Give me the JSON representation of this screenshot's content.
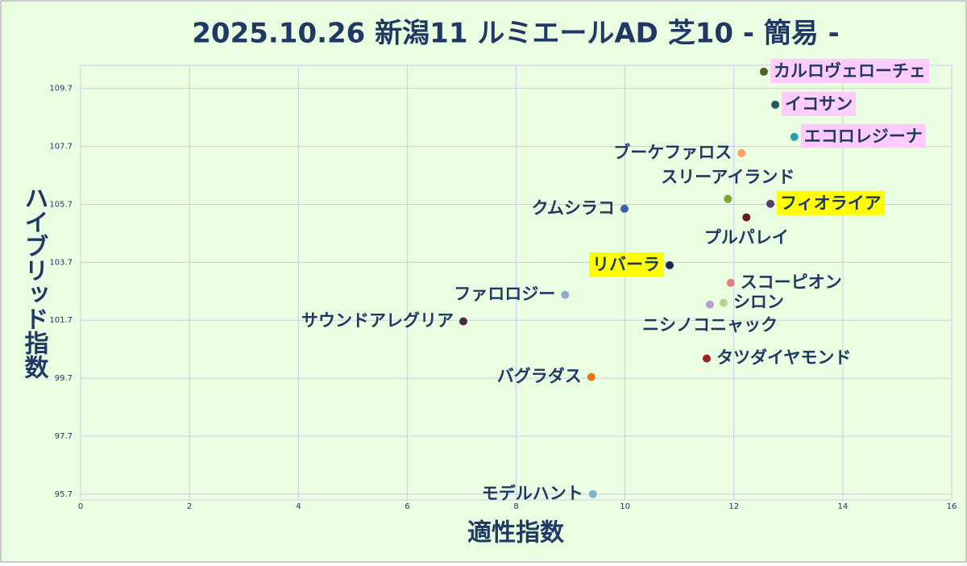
{
  "chart_data": {
    "type": "scatter",
    "title": "2025.10.26 新潟11 ルミエールAD 芝10  - 簡易 -",
    "x_label": "適性指数",
    "y_label": "ハイブリッド指数",
    "xlim": [
      0,
      16
    ],
    "xticks": [
      0,
      2,
      4,
      6,
      8,
      10,
      12,
      14,
      16
    ],
    "ylim": [
      95.5,
      110.5
    ],
    "yticks": [
      95.7,
      97.7,
      99.7,
      101.7,
      103.7,
      105.7,
      107.7,
      109.7
    ],
    "grid": true,
    "points": [
      {
        "name": "カルロヴェローチェ",
        "x": 12.55,
        "y": 110.28,
        "color": "#4f6228",
        "highlight": "#ffccff"
      },
      {
        "name": "イコサン",
        "x": 12.76,
        "y": 109.14,
        "color": "#1f5c5f",
        "highlight": "#ffccff"
      },
      {
        "name": "エコロレジーナ",
        "x": 13.11,
        "y": 108.03,
        "color": "#2aa1a8",
        "highlight": "#ffccff"
      },
      {
        "name": "ブーケファロス",
        "x": 12.14,
        "y": 107.47,
        "color": "#f4a460"
      },
      {
        "name": "スリーアイランド",
        "x": 11.89,
        "y": 105.89,
        "color": "#7ea33a"
      },
      {
        "name": "フィオライア",
        "x": 12.67,
        "y": 105.72,
        "color": "#5b3f6e",
        "highlight": "#ffff00"
      },
      {
        "name": "プルパレイ",
        "x": 12.23,
        "y": 105.25,
        "color": "#6b1a1a"
      },
      {
        "name": "クムシラコ",
        "x": 9.99,
        "y": 105.55,
        "color": "#3b5fa8"
      },
      {
        "name": "リバーラ",
        "x": 10.82,
        "y": 103.6,
        "color": "#1f2a4d",
        "highlight": "#ffff00"
      },
      {
        "name": "スコーピオン",
        "x": 11.94,
        "y": 102.99,
        "color": "#e08080"
      },
      {
        "name": "シロン",
        "x": 11.81,
        "y": 102.3,
        "color": "#b5d38a"
      },
      {
        "name": "ニシノコニャック",
        "x": 11.56,
        "y": 102.24,
        "color": "#b8a0d0"
      },
      {
        "name": "ファロロジー",
        "x": 8.9,
        "y": 102.58,
        "color": "#8eaad6"
      },
      {
        "name": "サウンドアレグリア",
        "x": 7.03,
        "y": 101.66,
        "color": "#4a2a40"
      },
      {
        "name": "タツダイヤモンド",
        "x": 11.5,
        "y": 100.38,
        "color": "#a02020"
      },
      {
        "name": "バグラダス",
        "x": 9.38,
        "y": 99.74,
        "color": "#f0700a"
      },
      {
        "name": "モデルハント",
        "x": 9.41,
        "y": 95.7,
        "color": "#7fb3d5"
      }
    ]
  }
}
